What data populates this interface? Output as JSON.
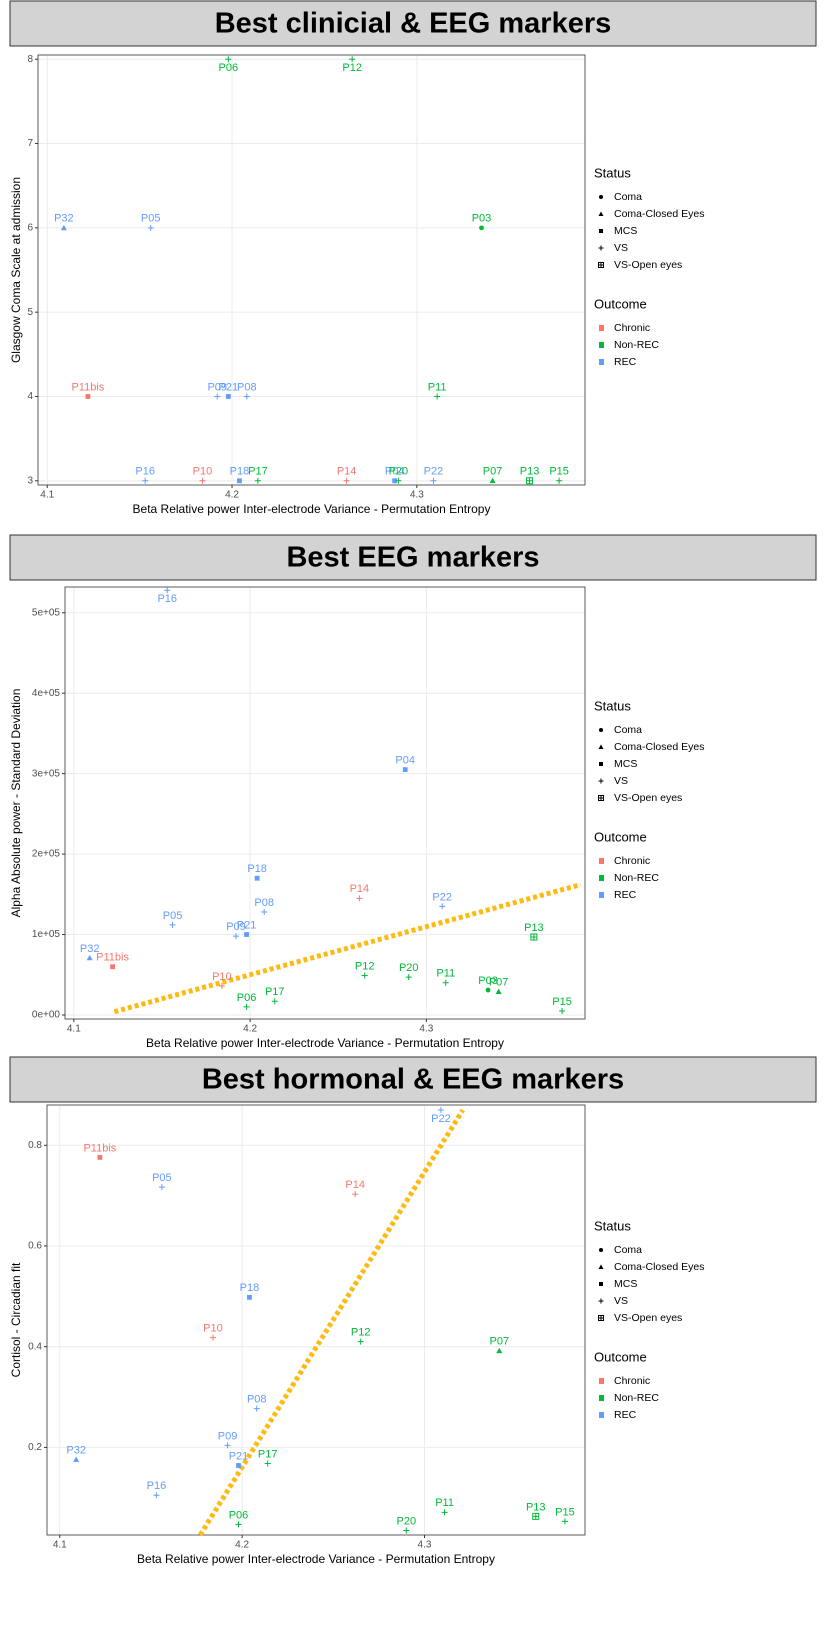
{
  "chart_data": [
    {
      "type": "scatter",
      "title": "Best clinicial & EEG markers",
      "xlabel": "Beta Relative power Inter-electrode Variance - Permutation Entropy",
      "ylabel": "Glasgow Coma Scale at admission",
      "xlim": [
        4.095,
        4.391
      ],
      "xticks": [
        4.1,
        4.2,
        4.3
      ],
      "ylim": [
        2.95,
        8.05
      ],
      "yticks": [
        3,
        4,
        5,
        6,
        7,
        8
      ],
      "grid": true,
      "status_title": "Status",
      "outcome_title": "Outcome",
      "status_groups": [
        {
          "name": "Coma",
          "shape": "circle"
        },
        {
          "name": "Coma-Closed Eyes",
          "shape": "triangle"
        },
        {
          "name": "MCS",
          "shape": "square"
        },
        {
          "name": "VS",
          "shape": "plus"
        },
        {
          "name": "VS-Open eyes",
          "shape": "boxplus"
        }
      ],
      "outcome_groups": [
        {
          "name": "Chronic",
          "color": "#F8766D"
        },
        {
          "name": "Non-REC",
          "color": "#00BA38"
        },
        {
          "name": "REC",
          "color": "#619CFF"
        }
      ],
      "points": {
        "labels": [
          "P06",
          "P12",
          "P32",
          "P05",
          "P03",
          "P11bis",
          "P09",
          "P21",
          "P08",
          "P11",
          "P16",
          "P10",
          "P18",
          "P17",
          "P14",
          "P04",
          "P20",
          "P22",
          "P07",
          "P13",
          "P15"
        ],
        "x": [
          4.198,
          4.265,
          4.109,
          4.156,
          4.335,
          4.122,
          4.192,
          4.198,
          4.208,
          4.311,
          4.153,
          4.184,
          4.204,
          4.214,
          4.262,
          4.288,
          4.29,
          4.309,
          4.341,
          4.361,
          4.377
        ],
        "y": [
          8,
          8,
          6,
          6,
          6,
          4,
          4,
          4,
          4,
          4,
          3,
          3,
          3,
          3,
          3,
          3,
          3,
          3,
          3,
          3,
          3
        ],
        "status": [
          "VS",
          "VS",
          "Coma-Closed Eyes",
          "VS",
          "Coma",
          "MCS",
          "VS",
          "MCS",
          "VS",
          "VS",
          "VS",
          "VS",
          "MCS",
          "VS",
          "VS",
          "MCS",
          "VS",
          "VS",
          "Coma-Closed Eyes",
          "VS-Open eyes",
          "VS"
        ],
        "outcome": [
          "Non-REC",
          "Non-REC",
          "REC",
          "REC",
          "Non-REC",
          "Chronic",
          "REC",
          "REC",
          "REC",
          "Non-REC",
          "REC",
          "Chronic",
          "REC",
          "Non-REC",
          "Chronic",
          "REC",
          "Non-REC",
          "REC",
          "Non-REC",
          "Non-REC",
          "Non-REC"
        ]
      }
    },
    {
      "type": "scatter",
      "title": "Best EEG markers",
      "xlabel": "Beta Relative power Inter-electrode Variance - Permutation Entropy",
      "ylabel": "Alpha Absolute power - Standard Deviation",
      "xlim": [
        4.095,
        4.39
      ],
      "xticks": [
        4.1,
        4.2,
        4.3
      ],
      "ylim": [
        -5000,
        532000
      ],
      "yticks": [
        {
          "value": 0,
          "label": "0e+00"
        },
        {
          "value": 100000,
          "label": "1e+05"
        },
        {
          "value": 200000,
          "label": "2e+05"
        },
        {
          "value": 300000,
          "label": "3e+05"
        },
        {
          "value": 400000,
          "label": "4e+05"
        },
        {
          "value": 500000,
          "label": "5e+05"
        }
      ],
      "grid": true,
      "status_title": "Status",
      "outcome_title": "Outcome",
      "status_groups": [
        {
          "name": "Coma",
          "shape": "circle"
        },
        {
          "name": "Coma-Closed Eyes",
          "shape": "triangle"
        },
        {
          "name": "MCS",
          "shape": "square"
        },
        {
          "name": "VS",
          "shape": "plus"
        },
        {
          "name": "VS-Open eyes",
          "shape": "boxplus"
        }
      ],
      "outcome_groups": [
        {
          "name": "Chronic",
          "color": "#F8766D"
        },
        {
          "name": "Non-REC",
          "color": "#00BA38"
        },
        {
          "name": "REC",
          "color": "#619CFF"
        }
      ],
      "points": {
        "labels": [
          "P16",
          "P04",
          "P18",
          "P14",
          "P22",
          "P08",
          "P05",
          "P21",
          "P09",
          "P13",
          "P32",
          "P11bis",
          "P12",
          "P20",
          "P11",
          "P10",
          "P03",
          "P07",
          "P17",
          "P06",
          "P15"
        ],
        "x": [
          4.153,
          4.288,
          4.204,
          4.262,
          4.309,
          4.208,
          4.156,
          4.198,
          4.192,
          4.361,
          4.109,
          4.122,
          4.265,
          4.29,
          4.311,
          4.184,
          4.335,
          4.341,
          4.214,
          4.198,
          4.377
        ],
        "y": [
          528000,
          305000,
          170000,
          145000,
          135000,
          128000,
          112000,
          100000,
          98000,
          97000,
          71000,
          60000,
          49000,
          47000,
          40000,
          36000,
          31000,
          29000,
          17000,
          10000,
          5000
        ],
        "status": [
          "VS",
          "MCS",
          "MCS",
          "VS",
          "VS",
          "VS",
          "VS",
          "MCS",
          "VS",
          "VS-Open eyes",
          "Coma-Closed Eyes",
          "MCS",
          "VS",
          "VS",
          "VS",
          "VS",
          "Coma",
          "Coma-Closed Eyes",
          "VS",
          "VS",
          "VS"
        ],
        "outcome": [
          "REC",
          "REC",
          "REC",
          "Chronic",
          "REC",
          "REC",
          "REC",
          "REC",
          "REC",
          "Non-REC",
          "REC",
          "Chronic",
          "Non-REC",
          "Non-REC",
          "Non-REC",
          "Chronic",
          "Non-REC",
          "Non-REC",
          "Non-REC",
          "Non-REC",
          "Non-REC"
        ]
      },
      "trend_line": {
        "x": [
          4.123,
          4.3875
        ],
        "y": [
          4000,
          162000
        ],
        "color": "#FFB90F"
      }
    },
    {
      "type": "scatter",
      "title": "Best hormonal & EEG markers",
      "xlabel": "Beta Relative power Inter-electrode Variance - Permutation Entropy",
      "ylabel": "Cortisol - Circadian fit",
      "xlim": [
        4.093,
        4.388
      ],
      "xticks": [
        4.1,
        4.2,
        4.3
      ],
      "ylim": [
        0.026,
        0.88
      ],
      "yticks": [
        0.2,
        0.4,
        0.6,
        0.8
      ],
      "grid": true,
      "status_title": "Status",
      "outcome_title": "Outcome",
      "status_groups": [
        {
          "name": "Coma",
          "shape": "circle"
        },
        {
          "name": "Coma-Closed Eyes",
          "shape": "triangle"
        },
        {
          "name": "MCS",
          "shape": "square"
        },
        {
          "name": "VS",
          "shape": "plus"
        },
        {
          "name": "VS-Open eyes",
          "shape": "boxplus"
        }
      ],
      "outcome_groups": [
        {
          "name": "Chronic",
          "color": "#F8766D"
        },
        {
          "name": "Non-REC",
          "color": "#00BA38"
        },
        {
          "name": "REC",
          "color": "#619CFF"
        }
      ],
      "points": {
        "labels": [
          "P22",
          "P11bis",
          "P05",
          "P14",
          "P18",
          "P10",
          "P12",
          "P07",
          "P08",
          "P09",
          "P32",
          "P17",
          "P21",
          "P16",
          "P11",
          "P13",
          "P15",
          "P06",
          "P20"
        ],
        "x": [
          4.309,
          4.122,
          4.156,
          4.262,
          4.204,
          4.184,
          4.265,
          4.341,
          4.208,
          4.192,
          4.109,
          4.214,
          4.198,
          4.153,
          4.311,
          4.361,
          4.377,
          4.198,
          4.29
        ],
        "y": [
          0.87,
          0.776,
          0.717,
          0.703,
          0.498,
          0.418,
          0.41,
          0.392,
          0.277,
          0.204,
          0.176,
          0.168,
          0.164,
          0.105,
          0.071,
          0.063,
          0.053,
          0.047,
          0.035
        ],
        "status": [
          "VS",
          "MCS",
          "VS",
          "VS",
          "MCS",
          "VS",
          "VS",
          "Coma-Closed Eyes",
          "VS",
          "VS",
          "Coma-Closed Eyes",
          "VS",
          "MCS",
          "VS",
          "VS",
          "VS-Open eyes",
          "VS",
          "VS",
          "VS"
        ],
        "outcome": [
          "REC",
          "Chronic",
          "REC",
          "Chronic",
          "REC",
          "Chronic",
          "Non-REC",
          "Non-REC",
          "REC",
          "REC",
          "REC",
          "Non-REC",
          "REC",
          "REC",
          "Non-REC",
          "Non-REC",
          "Non-REC",
          "Non-REC",
          "Non-REC"
        ]
      },
      "trend_line": {
        "x": [
          4.177,
          4.321
        ],
        "y": [
          0.026,
          0.87
        ],
        "color": "#FFB90F"
      }
    }
  ]
}
